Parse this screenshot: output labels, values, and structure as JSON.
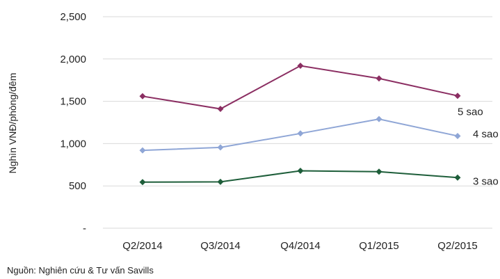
{
  "chart_data": {
    "type": "line",
    "categories": [
      "Q2/2014",
      "Q3/2014",
      "Q4/2014",
      "Q1/2015",
      "Q2/2015"
    ],
    "series": [
      {
        "name": "5 sao",
        "color": "#8B2E62",
        "values": [
          1560,
          1410,
          1920,
          1770,
          1565
        ]
      },
      {
        "name": "4 sao",
        "color": "#8FA6D6",
        "values": [
          920,
          955,
          1120,
          1290,
          1090
        ]
      },
      {
        "name": "3 sao",
        "color": "#1E5E3A",
        "values": [
          545,
          548,
          678,
          668,
          598
        ]
      }
    ],
    "yticks": [
      {
        "value": 0,
        "label": "-"
      },
      {
        "value": 500,
        "label": "500"
      },
      {
        "value": 1000,
        "label": "1,000"
      },
      {
        "value": 1500,
        "label": "1,500"
      },
      {
        "value": 2000,
        "label": "2,000"
      },
      {
        "value": 2500,
        "label": "2,500"
      }
    ],
    "ylim": [
      0,
      2500
    ],
    "ylabel": "Nghìn VNĐ/phòng/đêm",
    "xlabel": "",
    "grid": "horizontal",
    "marker": "diamond",
    "legend": "inline-right"
  },
  "source": "Nguồn: Nghiên cứu & Tư vấn Savills"
}
